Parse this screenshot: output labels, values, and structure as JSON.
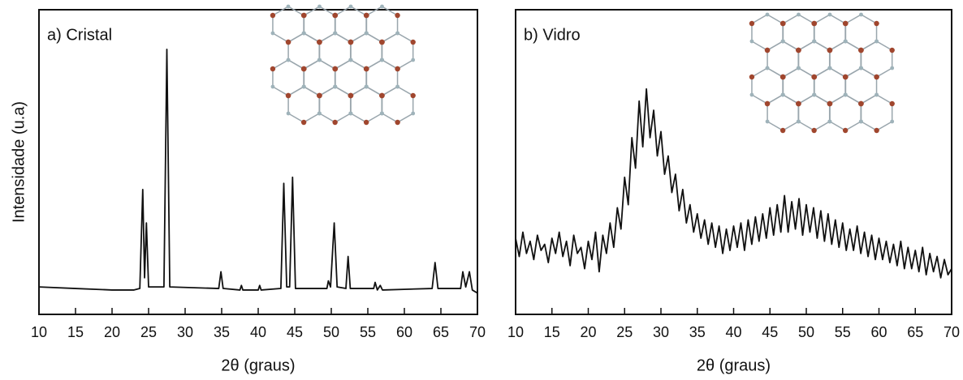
{
  "chart_data": [
    {
      "type": "line",
      "title": "a) Cristal",
      "xlabel": "2θ  (graus)",
      "ylabel": "Intensidade (u.a)",
      "x": [
        10,
        15,
        20,
        23,
        23.8,
        24.2,
        24.45,
        24.7,
        25.0,
        27.1,
        27.5,
        27.9,
        34.6,
        34.9,
        35.2,
        37.5,
        37.7,
        37.9,
        40.0,
        40.2,
        40.4,
        43.1,
        43.5,
        43.9,
        44.3,
        44.7,
        45.1,
        49.4,
        49.6,
        49.9,
        50.4,
        50.8,
        52.0,
        52.3,
        52.6,
        55.8,
        56.0,
        56.3,
        56.7,
        57.0,
        63.8,
        64.2,
        64.6,
        67.7,
        68.0,
        68.4,
        68.9,
        69.3,
        70
      ],
      "series": [
        {
          "color": "#111111",
          "values": [
            9,
            8.5,
            8,
            8,
            8.5,
            41,
            12,
            30,
            9,
            9,
            87,
            9,
            8.5,
            14,
            8.5,
            8,
            9.5,
            8,
            8,
            9.5,
            8,
            8.5,
            43,
            9,
            9,
            45,
            8.5,
            8.5,
            11,
            9,
            30,
            9,
            8.5,
            19,
            8.5,
            8.5,
            10.5,
            8,
            9.5,
            8,
            8.5,
            17,
            8.5,
            8.5,
            14,
            9,
            14,
            8,
            7
          ]
        }
      ],
      "xlim": [
        10,
        70
      ],
      "xticks": [
        10,
        15,
        20,
        25,
        30,
        35,
        40,
        45,
        50,
        55,
        60,
        65,
        70
      ],
      "ylim": [
        0,
        100
      ]
    },
    {
      "type": "line",
      "title": "b) Vidro",
      "xlabel": "2θ  (graus)",
      "x": [
        10,
        10.5,
        11,
        11.5,
        12,
        12.5,
        13,
        13.5,
        14,
        14.5,
        15,
        15.5,
        16,
        16.5,
        17,
        17.5,
        18,
        18.5,
        19,
        19.5,
        20,
        20.5,
        21,
        21.5,
        22,
        22.5,
        23,
        23.5,
        24,
        24.5,
        25,
        25.5,
        26,
        26.5,
        27,
        27.5,
        28,
        28.5,
        29,
        29.5,
        30,
        30.5,
        31,
        31.5,
        32,
        32.5,
        33,
        33.5,
        34,
        34.5,
        35,
        35.5,
        36,
        36.5,
        37,
        37.5,
        38,
        38.5,
        39,
        39.5,
        40,
        40.5,
        41,
        41.5,
        42,
        42.5,
        43,
        43.5,
        44,
        44.5,
        45,
        45.5,
        46,
        46.5,
        47,
        47.5,
        48,
        48.5,
        49,
        49.5,
        50,
        50.5,
        51,
        51.5,
        52,
        52.5,
        53,
        53.5,
        54,
        54.5,
        55,
        55.5,
        56,
        56.5,
        57,
        57.5,
        58,
        58.5,
        59,
        59.5,
        60,
        60.5,
        61,
        61.5,
        62,
        62.5,
        63,
        63.5,
        64,
        64.5,
        65,
        65.5,
        66,
        66.5,
        67,
        67.5,
        68,
        68.5,
        69,
        69.5,
        70
      ],
      "series": [
        {
          "color": "#111111",
          "values": [
            25,
            19,
            27,
            20,
            24,
            18,
            26,
            21,
            23,
            17,
            25,
            20,
            27,
            19,
            24,
            16,
            26,
            20,
            22,
            15,
            24,
            18,
            27,
            14,
            26,
            20,
            30,
            22,
            35,
            28,
            45,
            36,
            58,
            48,
            70,
            55,
            74,
            58,
            67,
            52,
            60,
            46,
            52,
            40,
            46,
            34,
            41,
            30,
            36,
            27,
            33,
            25,
            31,
            23,
            30,
            22,
            29,
            20,
            28,
            21,
            29,
            22,
            30,
            21,
            31,
            23,
            32,
            24,
            33,
            25,
            35,
            26,
            36,
            27,
            39,
            27,
            37,
            28,
            38,
            26,
            36,
            27,
            35,
            25,
            34,
            24,
            33,
            23,
            31,
            22,
            30,
            21,
            28,
            21,
            29,
            20,
            27,
            19,
            26,
            18,
            25,
            18,
            24,
            17,
            23,
            16,
            24,
            15,
            22,
            15,
            21,
            14,
            22,
            13,
            20,
            14,
            19,
            12,
            18,
            13,
            15
          ]
        }
      ],
      "xlim": [
        10,
        70
      ],
      "xticks": [
        10,
        15,
        20,
        25,
        30,
        35,
        40,
        45,
        50,
        55,
        60,
        65,
        70
      ],
      "ylim": [
        0,
        100
      ]
    }
  ]
}
